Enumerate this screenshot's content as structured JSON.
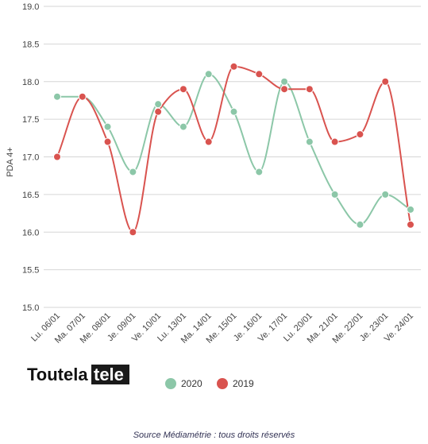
{
  "chart_data": {
    "type": "line",
    "categories": [
      "Lu. 06/01",
      "Ma. 07/01",
      "Me. 08/01",
      "Je. 09/01",
      "Ve. 10/01",
      "Lu. 13/01",
      "Ma. 14/01",
      "Me. 15/01",
      "Je. 16/01",
      "Ve. 17/01",
      "Lu. 20/01",
      "Ma. 21/01",
      "Me. 22/01",
      "Je. 23/01",
      "Ve. 24/01"
    ],
    "series": [
      {
        "name": "2020",
        "color": "#8cc7a8",
        "values": [
          17.8,
          17.8,
          17.4,
          16.8,
          17.7,
          17.4,
          18.1,
          17.6,
          16.8,
          18.0,
          17.2,
          16.5,
          16.1,
          16.5,
          16.3
        ]
      },
      {
        "name": "2019",
        "color": "#d9534f",
        "values": [
          17.0,
          17.8,
          17.2,
          16.0,
          17.6,
          17.9,
          17.2,
          18.2,
          18.1,
          17.9,
          17.9,
          17.2,
          17.3,
          18.0,
          16.1
        ]
      }
    ],
    "ylabel": "PDA 4+",
    "xlabel": "",
    "ylim": [
      15.0,
      19.0
    ],
    "yticks": [
      "15.0",
      "15.5",
      "16.0",
      "16.5",
      "17.0",
      "17.5",
      "18.0",
      "18.5",
      "19.0"
    ],
    "grid": true,
    "legend_position": "bottom"
  },
  "logo": {
    "part1": "Toutela",
    "part2": "tele"
  },
  "source": "Source Médiamétrie : tous droits réservés"
}
